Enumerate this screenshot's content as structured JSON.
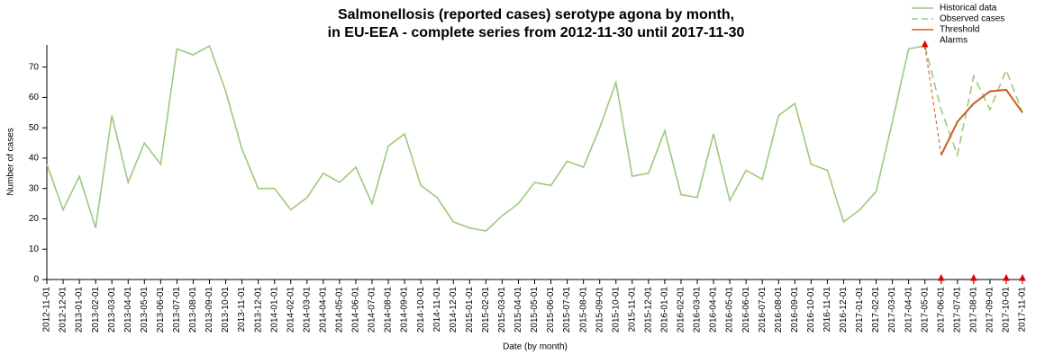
{
  "chart_data": {
    "type": "line",
    "title": "Salmonellosis (reported cases) serotype agona by month,",
    "subtitle": "in EU-EEA - complete series from 2012-11-30 until 2017-11-30",
    "x_label": "Date (by month)",
    "y_label": "Number of cases",
    "categories": [
      "2012-11-01",
      "2012-12-01",
      "2013-01-01",
      "2013-02-01",
      "2013-03-01",
      "2013-04-01",
      "2013-05-01",
      "2013-06-01",
      "2013-07-01",
      "2013-08-01",
      "2013-09-01",
      "2013-10-01",
      "2013-11-01",
      "2013-12-01",
      "2014-01-01",
      "2014-02-01",
      "2014-03-01",
      "2014-04-01",
      "2014-05-01",
      "2014-06-01",
      "2014-07-01",
      "2014-08-01",
      "2014-09-01",
      "2014-10-01",
      "2014-11-01",
      "2014-12-01",
      "2015-01-01",
      "2015-02-01",
      "2015-03-01",
      "2015-04-01",
      "2015-05-01",
      "2015-06-01",
      "2015-07-01",
      "2015-08-01",
      "2015-09-01",
      "2015-10-01",
      "2015-11-01",
      "2015-12-01",
      "2016-01-01",
      "2016-02-01",
      "2016-03-01",
      "2016-04-01",
      "2016-05-01",
      "2016-06-01",
      "2016-07-01",
      "2016-08-01",
      "2016-09-01",
      "2016-10-01",
      "2016-11-01",
      "2016-12-01",
      "2017-01-01",
      "2017-02-01",
      "2017-03-01",
      "2017-04-01",
      "2017-05-01",
      "2017-06-01",
      "2017-07-01",
      "2017-08-01",
      "2017-09-01",
      "2017-10-01",
      "2017-11-01"
    ],
    "series": [
      {
        "name": "Historical data",
        "color": "#9dc97a",
        "style": "solid",
        "values": [
          38,
          23,
          34,
          17,
          54,
          32,
          45,
          38,
          76,
          74,
          77,
          62,
          43,
          30,
          30,
          23,
          27,
          35,
          32,
          37,
          25,
          44,
          48,
          31,
          27,
          19,
          17,
          16,
          21,
          25,
          32,
          31,
          39,
          37,
          50,
          65,
          34,
          35,
          49,
          28,
          27,
          48,
          26,
          36,
          33,
          54,
          58,
          38,
          36,
          19,
          23,
          29,
          52,
          76,
          77,
          null,
          null,
          null,
          null,
          null,
          null
        ]
      },
      {
        "name": "Observed cases",
        "color": "#9dc97a",
        "style": "dashed",
        "values": [
          null,
          null,
          null,
          null,
          null,
          null,
          null,
          null,
          null,
          null,
          null,
          null,
          null,
          null,
          null,
          null,
          null,
          null,
          null,
          null,
          null,
          null,
          null,
          null,
          null,
          null,
          null,
          null,
          null,
          null,
          null,
          null,
          null,
          null,
          null,
          null,
          null,
          null,
          null,
          null,
          null,
          null,
          null,
          null,
          null,
          null,
          null,
          null,
          null,
          null,
          null,
          null,
          null,
          null,
          77,
          56,
          41,
          67,
          56,
          69,
          55
        ]
      },
      {
        "name": "Threshold",
        "color": "#c8601e",
        "style": "solid",
        "values": [
          null,
          null,
          null,
          null,
          null,
          null,
          null,
          null,
          null,
          null,
          null,
          null,
          null,
          null,
          null,
          null,
          null,
          null,
          null,
          null,
          null,
          null,
          null,
          null,
          null,
          null,
          null,
          null,
          null,
          null,
          null,
          null,
          null,
          null,
          null,
          null,
          null,
          null,
          null,
          null,
          null,
          null,
          null,
          null,
          null,
          null,
          null,
          null,
          null,
          null,
          null,
          null,
          null,
          null,
          77,
          41,
          52,
          58,
          62,
          62.5,
          55
        ]
      },
      {
        "name": "Alarms",
        "color": "#e00000",
        "style": "marker",
        "values": [
          null,
          null,
          null,
          null,
          null,
          null,
          null,
          null,
          null,
          null,
          null,
          null,
          null,
          null,
          null,
          null,
          null,
          null,
          null,
          null,
          null,
          null,
          null,
          null,
          null,
          null,
          null,
          null,
          null,
          null,
          null,
          null,
          null,
          null,
          null,
          null,
          null,
          null,
          null,
          null,
          null,
          null,
          null,
          null,
          null,
          null,
          null,
          null,
          null,
          null,
          null,
          null,
          null,
          null,
          77,
          0,
          null,
          0,
          null,
          0,
          0
        ]
      }
    ],
    "ylim": [
      0,
      77
    ],
    "yticks": [
      0,
      10,
      20,
      30,
      40,
      50,
      60,
      70
    ],
    "grid": false,
    "legend": "top-right"
  }
}
